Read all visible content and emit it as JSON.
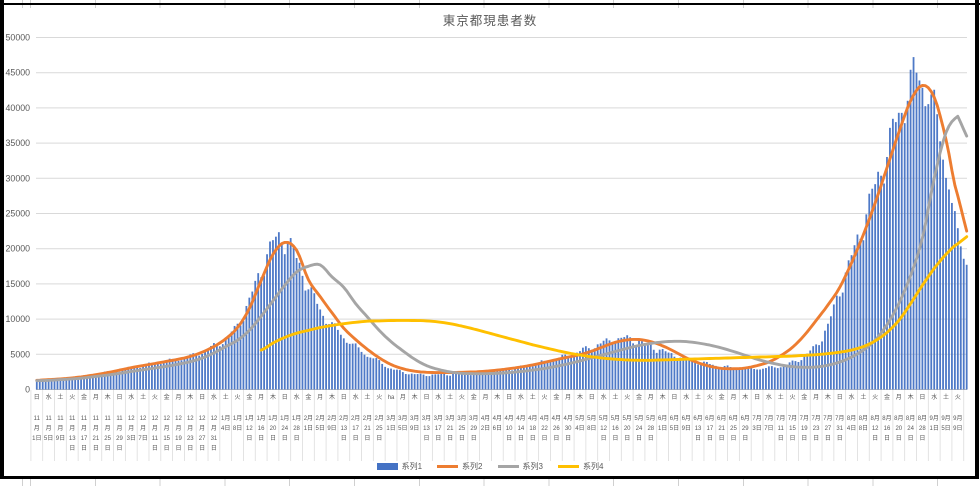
{
  "title": "東京都現患者数",
  "y_axis": {
    "min": 0,
    "max": 50000,
    "step": 5000,
    "ticks": [
      0,
      5000,
      10000,
      15000,
      20000,
      25000,
      30000,
      35000,
      40000,
      45000,
      50000
    ]
  },
  "x_axis": {
    "label_interval_days": 4,
    "labels": [
      [
        "日",
        11,
        1
      ],
      [
        "水",
        11,
        5
      ],
      [
        "土",
        11,
        9
      ],
      [
        "火",
        11,
        13
      ],
      [
        "金",
        11,
        17
      ],
      [
        "月",
        11,
        21
      ],
      [
        "木",
        11,
        25
      ],
      [
        "日",
        11,
        29
      ],
      [
        "水",
        12,
        3
      ],
      [
        "土",
        12,
        7
      ],
      [
        "火",
        12,
        11
      ],
      [
        "金",
        12,
        15
      ],
      [
        "月",
        12,
        19
      ],
      [
        "木",
        12,
        23
      ],
      [
        "日",
        12,
        27
      ],
      [
        "水",
        12,
        31
      ],
      [
        "土",
        1,
        4
      ],
      [
        "火",
        1,
        8
      ],
      [
        "金",
        1,
        12
      ],
      [
        "月",
        1,
        16
      ],
      [
        "木",
        1,
        20
      ],
      [
        "日",
        1,
        24
      ],
      [
        "水",
        1,
        28
      ],
      [
        "金",
        2,
        1
      ],
      [
        "月",
        2,
        5
      ],
      [
        "木",
        2,
        9
      ],
      [
        "日",
        2,
        13
      ],
      [
        "水",
        2,
        17
      ],
      [
        "土",
        2,
        21
      ],
      [
        "火",
        2,
        25
      ],
      [
        "ha",
        3,
        1
      ],
      [
        "月",
        3,
        5
      ],
      [
        "木",
        3,
        9
      ],
      [
        "日",
        3,
        13
      ],
      [
        "水",
        3,
        17
      ],
      [
        "土",
        3,
        21
      ],
      [
        "火",
        3,
        25
      ],
      [
        "金",
        3,
        29
      ],
      [
        "月",
        4,
        2
      ],
      [
        "木",
        4,
        6
      ],
      [
        "日",
        4,
        10
      ],
      [
        "水",
        4,
        14
      ],
      [
        "土",
        4,
        18
      ],
      [
        "火",
        4,
        22
      ],
      [
        "金",
        4,
        26
      ],
      [
        "月",
        4,
        30
      ],
      [
        "木",
        5,
        4
      ],
      [
        "日",
        5,
        8
      ],
      [
        "水",
        5,
        12
      ],
      [
        "土",
        5,
        16
      ],
      [
        "火",
        5,
        20
      ],
      [
        "金",
        5,
        24
      ],
      [
        "月",
        5,
        28
      ],
      [
        "木",
        6,
        1
      ],
      [
        "日",
        6,
        5
      ],
      [
        "水",
        6,
        9
      ],
      [
        "土",
        6,
        13
      ],
      [
        "火",
        6,
        17
      ],
      [
        "金",
        6,
        21
      ],
      [
        "月",
        6,
        25
      ],
      [
        "木",
        6,
        29
      ],
      [
        "日",
        7,
        3
      ],
      [
        "水",
        7,
        7
      ],
      [
        "土",
        7,
        11
      ],
      [
        "火",
        7,
        15
      ],
      [
        "金",
        7,
        19
      ],
      [
        "月",
        7,
        23
      ],
      [
        "木",
        7,
        27
      ],
      [
        "日",
        7,
        31
      ],
      [
        "水",
        8,
        4
      ],
      [
        "土",
        8,
        8
      ],
      [
        "火",
        8,
        12
      ],
      [
        "金",
        8,
        16
      ],
      [
        "月",
        8,
        20
      ],
      [
        "木",
        8,
        24
      ],
      [
        "日",
        8,
        28
      ],
      [
        "水",
        9,
        1
      ],
      [
        "土",
        9,
        5
      ],
      [
        "火",
        9,
        9
      ]
    ]
  },
  "legend": [
    {
      "label": "系列1",
      "color": "#4472C4",
      "type": "bar"
    },
    {
      "label": "系列2",
      "color": "#ED7D31",
      "type": "line"
    },
    {
      "label": "系列3",
      "color": "#A5A5A5",
      "type": "line"
    },
    {
      "label": "系列4",
      "color": "#FFC000",
      "type": "line"
    }
  ],
  "chart_data": {
    "type": "combo",
    "title": "東京都現患者数",
    "x_first_label": "11月1日",
    "x_last_label": "9月9日",
    "n_days": 316,
    "ylim": [
      0,
      50000
    ],
    "y_step": 5000,
    "grid": true,
    "legend_position": "bottom",
    "sampling": "values sampled at each axis label (every 4 days)",
    "series": [
      {
        "name": "系列1",
        "type": "bar",
        "color": "#4472C4",
        "end_value": 18500,
        "values": [
          1350,
          1450,
          1550,
          1700,
          1900,
          2150,
          2450,
          2750,
          3050,
          3350,
          3650,
          3950,
          4250,
          4650,
          5300,
          6100,
          7200,
          9000,
          12500,
          16800,
          20500,
          21300,
          18300,
          14500,
          11200,
          9100,
          7400,
          6000,
          4850,
          3900,
          2950,
          2450,
          2150,
          2050,
          2100,
          2150,
          2200,
          2300,
          2550,
          2700,
          2900,
          3150,
          3500,
          3900,
          4300,
          4800,
          5400,
          6000,
          6600,
          7000,
          7200,
          6700,
          6100,
          5400,
          4800,
          4300,
          3900,
          3550,
          3250,
          3050,
          2950,
          2950,
          3050,
          3300,
          3800,
          4700,
          6200,
          9000,
          14000,
          18500,
          23500,
          28500,
          33500,
          38500,
          43000,
          43500,
          39000,
          31500,
          21500
        ]
      },
      {
        "name": "系列2",
        "type": "line",
        "color": "#ED7D31",
        "end_value": 22500,
        "values": [
          1300,
          1400,
          1500,
          1650,
          1850,
          2100,
          2400,
          2750,
          3100,
          3400,
          3700,
          4000,
          4300,
          4700,
          5300,
          6100,
          7200,
          8800,
          11500,
          15500,
          19200,
          20900,
          19800,
          15600,
          13200,
          10900,
          8700,
          7100,
          5700,
          4500,
          3550,
          2950,
          2600,
          2450,
          2400,
          2400,
          2450,
          2500,
          2600,
          2750,
          2950,
          3200,
          3500,
          3850,
          4250,
          4600,
          4950,
          5450,
          6100,
          6700,
          7050,
          7100,
          6800,
          6200,
          5400,
          4500,
          3800,
          3300,
          3000,
          2950,
          3050,
          3400,
          3900,
          4800,
          6000,
          7700,
          9800,
          12000,
          14500,
          18000,
          22000,
          26500,
          31500,
          36500,
          41000,
          43200,
          41500,
          35500,
          27500
        ]
      },
      {
        "name": "系列3",
        "type": "line",
        "color": "#A5A5A5",
        "end_value": 36000,
        "values": [
          1250,
          1300,
          1400,
          1500,
          1650,
          1850,
          2050,
          2300,
          2550,
          2800,
          3050,
          3300,
          3600,
          3950,
          4450,
          5200,
          6100,
          7000,
          8400,
          10400,
          12600,
          14800,
          16700,
          17500,
          17700,
          16000,
          14500,
          12200,
          10300,
          8400,
          6800,
          5500,
          4300,
          3400,
          2850,
          2500,
          2300,
          2250,
          2250,
          2300,
          2400,
          2550,
          2750,
          3000,
          3300,
          3650,
          4050,
          4500,
          4950,
          5400,
          5850,
          6250,
          6550,
          6750,
          6850,
          6800,
          6600,
          6300,
          5900,
          5400,
          4850,
          4300,
          3850,
          3500,
          3250,
          3150,
          3200,
          3450,
          3900,
          4600,
          5600,
          7000,
          9200,
          12200,
          16200,
          21500,
          30000,
          36500,
          38800
        ]
      },
      {
        "name": "系列4",
        "type": "line",
        "color": "#FFC000",
        "end_value": 21700,
        "values": [
          null,
          null,
          null,
          null,
          null,
          null,
          null,
          null,
          null,
          null,
          null,
          null,
          null,
          null,
          null,
          null,
          null,
          null,
          null,
          5600,
          6600,
          7400,
          8000,
          8400,
          8800,
          9100,
          9350,
          9550,
          9700,
          9750,
          9800,
          9820,
          9800,
          9750,
          9600,
          9350,
          9000,
          8600,
          8150,
          7700,
          7250,
          6800,
          6350,
          5950,
          5550,
          5200,
          4900,
          4650,
          4450,
          4300,
          4200,
          4150,
          4150,
          4200,
          4250,
          4300,
          4350,
          4400,
          4450,
          4500,
          4550,
          4600,
          4650,
          4700,
          4750,
          4850,
          4950,
          5100,
          5300,
          5600,
          6100,
          6900,
          8100,
          9800,
          12200,
          14800,
          17200,
          19200,
          20700
        ]
      }
    ]
  }
}
